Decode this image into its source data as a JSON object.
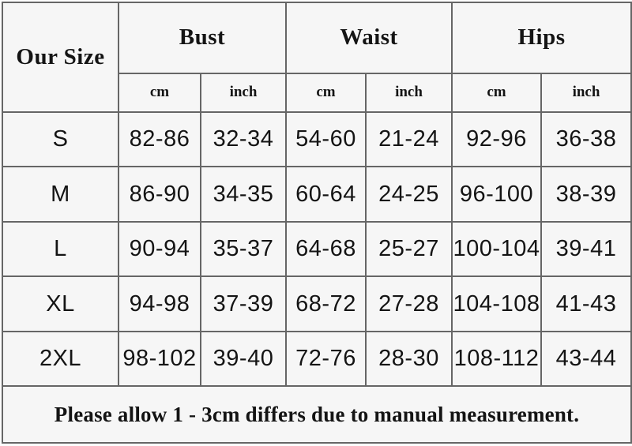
{
  "chart_data": {
    "type": "table",
    "corner_label": "Our Size",
    "groups": [
      "Bust",
      "Waist",
      "Hips"
    ],
    "units": [
      "cm",
      "inch",
      "cm",
      "inch",
      "cm",
      "inch"
    ],
    "rows": [
      [
        "S",
        "82-86",
        "32-34",
        "54-60",
        "21-24",
        "92-96",
        "36-38"
      ],
      [
        "M",
        "86-90",
        "34-35",
        "60-64",
        "24-25",
        "96-100",
        "38-39"
      ],
      [
        "L",
        "90-94",
        "35-37",
        "64-68",
        "25-27",
        "100-104",
        "39-41"
      ],
      [
        "XL",
        "94-98",
        "37-39",
        "68-72",
        "27-28",
        "104-108",
        "41-43"
      ],
      [
        "2XL",
        "98-102",
        "39-40",
        "72-76",
        "28-30",
        "108-112",
        "43-44"
      ]
    ],
    "footer_note": "Please allow 1 - 3cm differs due to manual measurement."
  },
  "colors": {
    "table_background": "#f6f6f6",
    "border": "#666666",
    "text": "#141414"
  }
}
